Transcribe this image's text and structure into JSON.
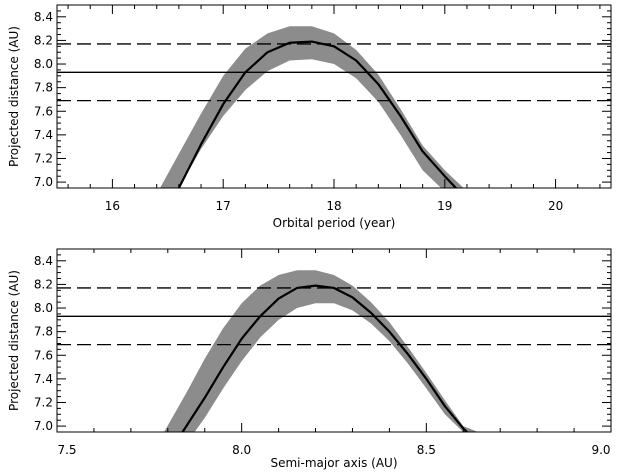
{
  "chart_data": [
    {
      "type": "line",
      "xlabel": "Orbital period (year)",
      "ylabel": "Projected distance (AU)",
      "xlim": [
        15.5,
        20.5
      ],
      "ylim": [
        6.95,
        8.5
      ],
      "xticks": [
        16,
        17,
        18,
        19,
        20
      ],
      "xtick_labels": [
        "16",
        "17",
        "18",
        "19",
        "20"
      ],
      "yticks": [
        7.0,
        7.2,
        7.4,
        7.6,
        7.8,
        8.0,
        8.2,
        8.4
      ],
      "ytick_labels": [
        "7.0",
        "7.2",
        "7.4",
        "7.6",
        "7.8",
        "8.0",
        "8.2",
        "8.4"
      ],
      "curve": {
        "x": [
          16.6,
          16.8,
          17.0,
          17.2,
          17.4,
          17.6,
          17.8,
          18.0,
          18.2,
          18.4,
          18.6,
          18.8,
          19.0,
          19.1
        ],
        "y": [
          6.95,
          7.32,
          7.66,
          7.93,
          8.1,
          8.18,
          8.19,
          8.15,
          8.03,
          7.83,
          7.56,
          7.26,
          7.05,
          6.95
        ]
      },
      "band": {
        "x": [
          16.43,
          16.6,
          16.8,
          17.0,
          17.2,
          17.4,
          17.6,
          17.8,
          18.0,
          18.2,
          18.4,
          18.6,
          18.8,
          19.0,
          19.17
        ],
        "upper": [
          6.95,
          7.24,
          7.58,
          7.9,
          8.13,
          8.26,
          8.32,
          8.32,
          8.26,
          8.12,
          7.91,
          7.62,
          7.31,
          7.1,
          6.95
        ],
        "lower": [
          6.6,
          6.95,
          7.28,
          7.56,
          7.78,
          7.94,
          8.03,
          8.04,
          8.0,
          7.88,
          7.68,
          7.4,
          7.1,
          6.92,
          6.8
        ]
      },
      "hlines": [
        {
          "y": 8.17,
          "style": "dashed"
        },
        {
          "y": 7.93,
          "style": "solid"
        },
        {
          "y": 7.69,
          "style": "dashed"
        }
      ]
    },
    {
      "type": "line",
      "xlabel": "Semi-major axis (AU)",
      "ylabel": "Projected distance (AU)",
      "xlim": [
        7.5,
        9.0
      ],
      "ylim": [
        6.95,
        8.5
      ],
      "xticks": [
        7.5,
        8.0,
        8.5,
        9.0
      ],
      "xtick_labels": [
        "7.5",
        "8.0",
        "8.5",
        "9.0"
      ],
      "yticks": [
        7.0,
        7.2,
        7.4,
        7.6,
        7.8,
        8.0,
        8.2,
        8.4
      ],
      "ytick_labels": [
        "7.0",
        "7.2",
        "7.4",
        "7.6",
        "7.8",
        "8.0",
        "8.2",
        "8.4"
      ],
      "curve": {
        "x": [
          7.84,
          7.9,
          7.95,
          8.0,
          8.05,
          8.1,
          8.15,
          8.2,
          8.25,
          8.3,
          8.35,
          8.4,
          8.45,
          8.5,
          8.55,
          8.6,
          8.61
        ],
        "y": [
          6.95,
          7.24,
          7.5,
          7.74,
          7.93,
          8.08,
          8.17,
          8.19,
          8.17,
          8.09,
          7.96,
          7.8,
          7.61,
          7.4,
          7.17,
          6.98,
          6.95
        ]
      },
      "band": {
        "x": [
          7.79,
          7.85,
          7.9,
          7.95,
          8.0,
          8.05,
          8.1,
          8.15,
          8.2,
          8.25,
          8.3,
          8.35,
          8.4,
          8.45,
          8.5,
          8.55,
          8.6,
          8.64
        ],
        "upper": [
          6.95,
          7.28,
          7.57,
          7.83,
          8.04,
          8.19,
          8.28,
          8.32,
          8.32,
          8.28,
          8.19,
          8.05,
          7.88,
          7.67,
          7.45,
          7.22,
          7.0,
          6.95
        ],
        "lower": [
          6.7,
          6.85,
          7.07,
          7.32,
          7.55,
          7.75,
          7.9,
          8.0,
          8.04,
          8.04,
          7.98,
          7.87,
          7.72,
          7.53,
          7.32,
          7.1,
          6.95,
          6.85
        ]
      },
      "hlines": [
        {
          "y": 8.17,
          "style": "dashed"
        },
        {
          "y": 7.93,
          "style": "solid"
        },
        {
          "y": 7.69,
          "style": "dashed"
        }
      ]
    }
  ],
  "colors": {
    "band": "#8c8c8c",
    "curve": "#000000",
    "lines": "#000000",
    "frame": "#000000",
    "background": "#ffffff"
  }
}
